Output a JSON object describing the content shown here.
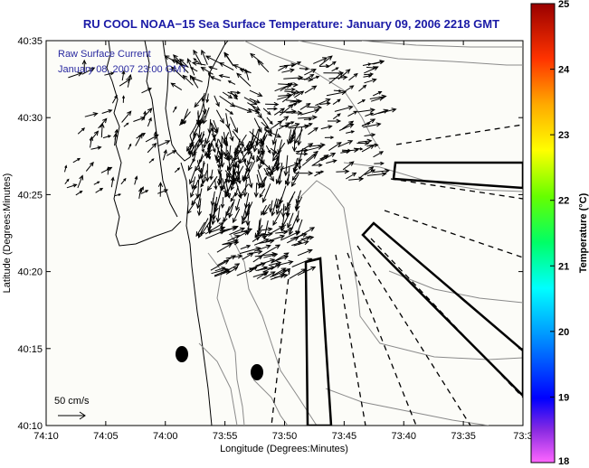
{
  "title": "RU COOL  NOAA−15  Sea Surface Temperature:  January 09, 2006 2218 GMT",
  "overlay": {
    "line1": "Raw Surface Current",
    "line2": "January 08, 2007 23:00 GMT"
  },
  "axes": {
    "xlabel": "Longitude (Degrees:Minutes)",
    "ylabel": "Latitude (Degrees:Minutes)",
    "x_ticks": [
      "74:10",
      "74:05",
      "74:00",
      "73:55",
      "73:50",
      "73:45",
      "73:40",
      "73:35",
      "73:3"
    ],
    "y_ticks": [
      "40:35",
      "40:30",
      "40:25",
      "40:20",
      "40:15",
      "40:10"
    ]
  },
  "colorbar": {
    "label": "Temperature (°C)",
    "ticks": [
      "25",
      "24",
      "23",
      "22",
      "21",
      "20",
      "19",
      "18"
    ]
  },
  "scale": {
    "label": "50 cm/s"
  }
}
